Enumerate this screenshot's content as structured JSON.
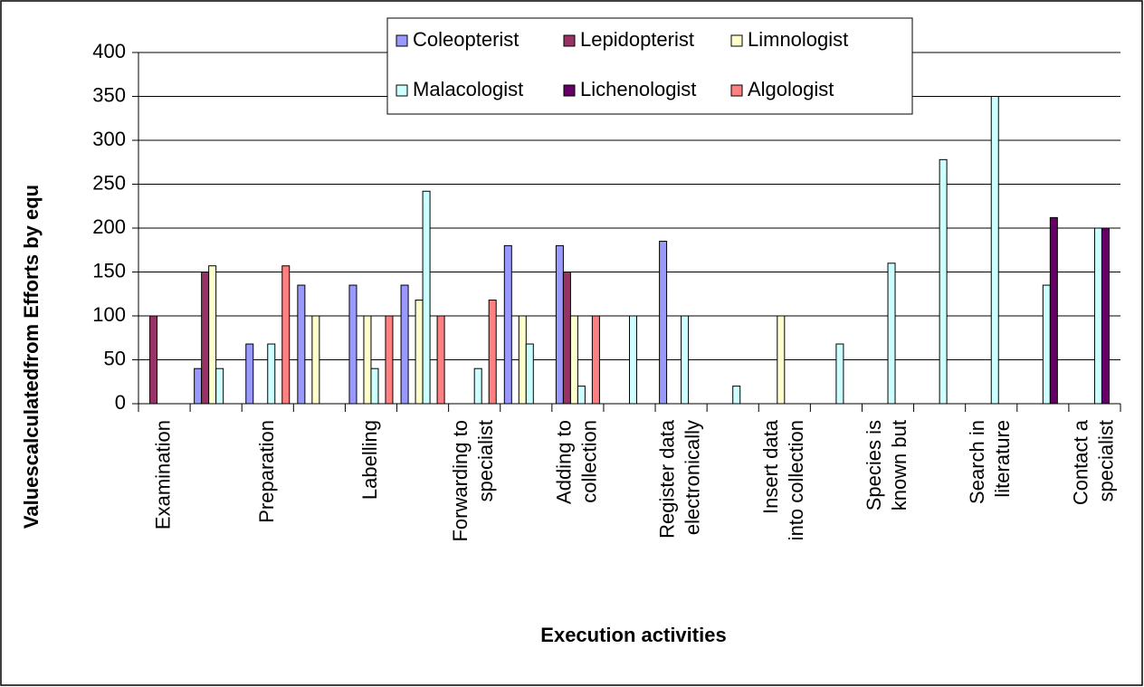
{
  "chart_data": {
    "type": "bar",
    "x_label": "Execution activities",
    "y_label": "Valuescalculatedfrom Efforts by equ",
    "categories": [
      "Examination",
      null,
      "Preparation",
      null,
      "Labelling",
      null,
      "Forwarding to\nspecialist",
      null,
      "Adding to\ncollection",
      null,
      "Register data\nelectronically",
      null,
      "Insert data\ninto collection",
      null,
      "Species is\nknown but",
      null,
      "Search in\nliterature",
      null,
      "Contact a\nspecialist"
    ],
    "series": [
      {
        "name": "Coleopterist",
        "color": "#9999ff",
        "values": [
          0,
          40,
          68,
          135,
          135,
          135,
          0,
          180,
          180,
          0,
          185,
          0,
          0,
          0,
          0,
          0,
          0,
          0,
          0
        ]
      },
      {
        "name": "Lepidopterist",
        "color": "#993366",
        "values": [
          100,
          150,
          0,
          0,
          0,
          0,
          0,
          0,
          150,
          0,
          0,
          0,
          0,
          0,
          0,
          0,
          0,
          0,
          0
        ]
      },
      {
        "name": "Limnologist",
        "color": "#ffffcc",
        "values": [
          0,
          157,
          0,
          100,
          100,
          118,
          0,
          100,
          100,
          0,
          0,
          0,
          100,
          0,
          0,
          0,
          0,
          0,
          0
        ]
      },
      {
        "name": "Malacologist",
        "color": "#ccffff",
        "values": [
          0,
          40,
          68,
          0,
          40,
          242,
          40,
          68,
          20,
          100,
          100,
          20,
          0,
          68,
          160,
          278,
          350,
          135,
          200
        ]
      },
      {
        "name": "Lichenologist",
        "color": "#660066",
        "values": [
          0,
          0,
          0,
          0,
          0,
          0,
          0,
          0,
          0,
          0,
          0,
          0,
          0,
          0,
          0,
          0,
          0,
          212,
          200
        ]
      },
      {
        "name": "Algologist",
        "color": "#ff8080",
        "values": [
          0,
          0,
          157,
          0,
          100,
          100,
          118,
          0,
          100,
          0,
          0,
          0,
          0,
          0,
          0,
          0,
          0,
          0,
          0
        ]
      }
    ],
    "ylim": [
      0,
      400
    ],
    "yticks": [
      0,
      50,
      100,
      150,
      200,
      250,
      300,
      350,
      400
    ],
    "grid": true,
    "legend": "top"
  }
}
